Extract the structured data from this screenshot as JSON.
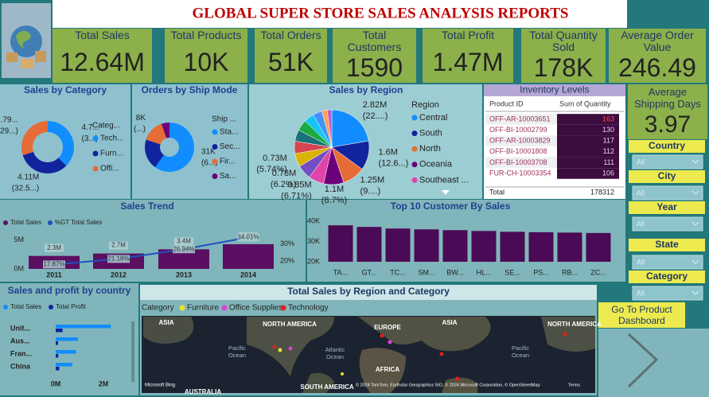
{
  "header": {
    "title": "GLOBAL SUPER STORE SALES ANALYSIS REPORTS"
  },
  "kpis": [
    {
      "label": "Total Sales",
      "value": "12.64M"
    },
    {
      "label": "Total Products",
      "value": "10K"
    },
    {
      "label": "Total Orders",
      "value": "51K"
    },
    {
      "label": "Total Customers",
      "value": "1590"
    },
    {
      "label": "Total Profit",
      "value": "1.47M"
    },
    {
      "label": "Total Quantity Sold",
      "value": "178K"
    },
    {
      "label": "Average Order Value",
      "value": "246.49"
    }
  ],
  "avg_shipping": {
    "label": "Average Shipping Days",
    "value": "3.97"
  },
  "slicers": [
    {
      "label": "Country",
      "value": "All"
    },
    {
      "label": "City",
      "value": "All"
    },
    {
      "label": "Year",
      "value": "All"
    },
    {
      "label": "State",
      "value": "All"
    },
    {
      "label": "Category",
      "value": "All"
    }
  ],
  "button": "Go To Product Dashboard",
  "inventory": {
    "title": "Inventory Levels",
    "columns": [
      "Product ID",
      "Sum of Quantity"
    ],
    "rows": [
      [
        "OFF-AR-10003651",
        "163"
      ],
      [
        "OFF-BI-10002799",
        "130"
      ],
      [
        "OFF-AR-10003829",
        "117"
      ],
      [
        "OFF-BI-10001808",
        "112"
      ],
      [
        "OFF-BI-10003708",
        "111"
      ],
      [
        "FUR-CH-10003354",
        "106"
      ]
    ],
    "total_label": "Total",
    "total": "178312"
  },
  "map": {
    "title": "Total Sales by Region and Category",
    "legend_title": "Category",
    "legend": [
      {
        "name": "Furniture",
        "color": "#e8e22a"
      },
      {
        "name": "Office Supplies",
        "color": "#e040d0"
      },
      {
        "name": "Technology",
        "color": "#e02020"
      }
    ],
    "labels": [
      "ASIA",
      "NORTH AMERICA",
      "EUROPE",
      "ASIA",
      "NORTH AMERICA",
      "Pacific Ocean",
      "Atlantic Ocean",
      "Pacific Ocean",
      "AFRICA",
      "SOUTH AMERICA",
      "AUSTRALIA"
    ],
    "logo": "Microsoft Bing",
    "copyright": "© 2024 TomTom, Earthstar Geographics SIO, © 2024 Microsoft Corporation, © OpenStreetMap",
    "terms": "Terms"
  },
  "chart_data": [
    {
      "type": "donut",
      "title": "Sales by Category",
      "legend_title": "Categ...",
      "categories": [
        "Tech...",
        "Furn...",
        "Offi..."
      ],
      "values": [
        4.74,
        4.11,
        3.79
      ],
      "value_labels": [
        "4.7...",
        "4.11M",
        "3.79..."
      ],
      "percent_labels": [
        "(3...)",
        "(32.5...)",
        "(29...)"
      ],
      "colors": [
        "#118dff",
        "#12239e",
        "#e66c37"
      ]
    },
    {
      "type": "donut",
      "title": "Orders by Ship Mode",
      "legend_title": "Ship ...",
      "categories": [
        "Sta...",
        "Sec...",
        "Fir...",
        "Sa..."
      ],
      "values": [
        30.8,
        10.3,
        7.6,
        2.7
      ],
      "value_labels": [
        "31K",
        null,
        "8K",
        null
      ],
      "percent_labels": [
        "(6...)",
        null,
        "(...)",
        null
      ],
      "colors": [
        "#118dff",
        "#12239e",
        "#e66c37",
        "#6b007b"
      ]
    },
    {
      "type": "pie",
      "title": "Sales by Region",
      "legend_title": "Region",
      "categories": [
        "Central",
        "South",
        "North",
        "Oceania",
        "Southeast ...",
        null,
        null,
        null,
        null,
        null,
        null,
        null,
        null,
        null
      ],
      "values": [
        2.82,
        1.6,
        1.25,
        1.1,
        0.85,
        0.78,
        0.73,
        0.68,
        0.63,
        0.6,
        0.55,
        0.5,
        0.3,
        0.25
      ],
      "value_labels": [
        "2.82M",
        "1.6M",
        "1.25M",
        "1.1M",
        "0.85M",
        "0.78M",
        "0.73M",
        null,
        null,
        null,
        null,
        null,
        null,
        null
      ],
      "percent_labels": [
        "(22....)",
        "(12.6...)",
        "(9....)",
        "(8.7%)",
        "(6.71%)",
        "(6.2%)",
        "(5.74%)",
        null,
        null,
        null,
        null,
        null,
        null,
        null
      ],
      "colors": [
        "#118dff",
        "#12239e",
        "#e66c37",
        "#6b007b",
        "#e044a7",
        "#744ec2",
        "#d9b300",
        "#d64550",
        "#197278",
        "#1aab40",
        "#15c6f4",
        "#4092ff",
        "#ffa058",
        "#be5dc9"
      ]
    },
    {
      "type": "combo",
      "title": "Sales Trend",
      "categories": [
        "2011",
        "2012",
        "2013",
        "2014"
      ],
      "series": [
        {
          "name": "Total Sales",
          "type": "bar",
          "color": "#5b0f62",
          "values": [
            2.26,
            2.68,
            3.41,
            4.3
          ],
          "value_labels": [
            "2.3M",
            "2.7M",
            "3.4M",
            "4.3M"
          ]
        },
        {
          "name": "%GT Total Sales",
          "type": "line",
          "axis": "y2",
          "color": "#1f4fbf",
          "values": [
            17.87,
            21.18,
            26.94,
            34.01
          ],
          "value_labels": [
            "17.87%",
            "21.18%",
            "26.94%",
            "34.01%"
          ]
        }
      ],
      "ylim": [
        0,
        6.5
      ],
      "yticks": [
        {
          "value": 0,
          "label": "0M"
        },
        {
          "value": 5,
          "label": "5M"
        }
      ],
      "y2lim": [
        15.2,
        37.5
      ],
      "y2ticks": [
        {
          "value": 20,
          "label": "20%"
        },
        {
          "value": 30,
          "label": "30%"
        }
      ]
    },
    {
      "type": "bar",
      "title": "Top 10 Customer By Sales",
      "categories": [
        "TA...",
        "GT...",
        "TC...",
        "SM...",
        "BW...",
        "HL...",
        "SE...",
        "PS...",
        "RB...",
        "ZC..."
      ],
      "values": [
        38,
        37.2,
        36.4,
        36,
        35.6,
        35.2,
        34.8,
        34.6,
        34.4,
        34.2
      ],
      "color": "#4b0a55",
      "ylim": [
        20,
        42
      ],
      "yticks": [
        {
          "value": 20,
          "label": "20K"
        },
        {
          "value": 30,
          "label": "30K"
        },
        {
          "value": 40,
          "label": "40K"
        }
      ]
    },
    {
      "type": "barh",
      "title": "Sales and profit by country",
      "categories": [
        "Unit...",
        "Aus...",
        "Fran...",
        "China"
      ],
      "series": [
        {
          "name": "Total Sales",
          "color": "#118dff",
          "values": [
            2.3,
            0.93,
            0.86,
            0.7
          ]
        },
        {
          "name": "Total Profit",
          "color": "#12239e",
          "values": [
            0.29,
            0.1,
            0.11,
            0.15
          ]
        }
      ],
      "xlim": [
        0,
        2.93
      ],
      "xticks": [
        {
          "value": 0,
          "label": "0M"
        },
        {
          "value": 2,
          "label": "2M"
        }
      ]
    }
  ]
}
